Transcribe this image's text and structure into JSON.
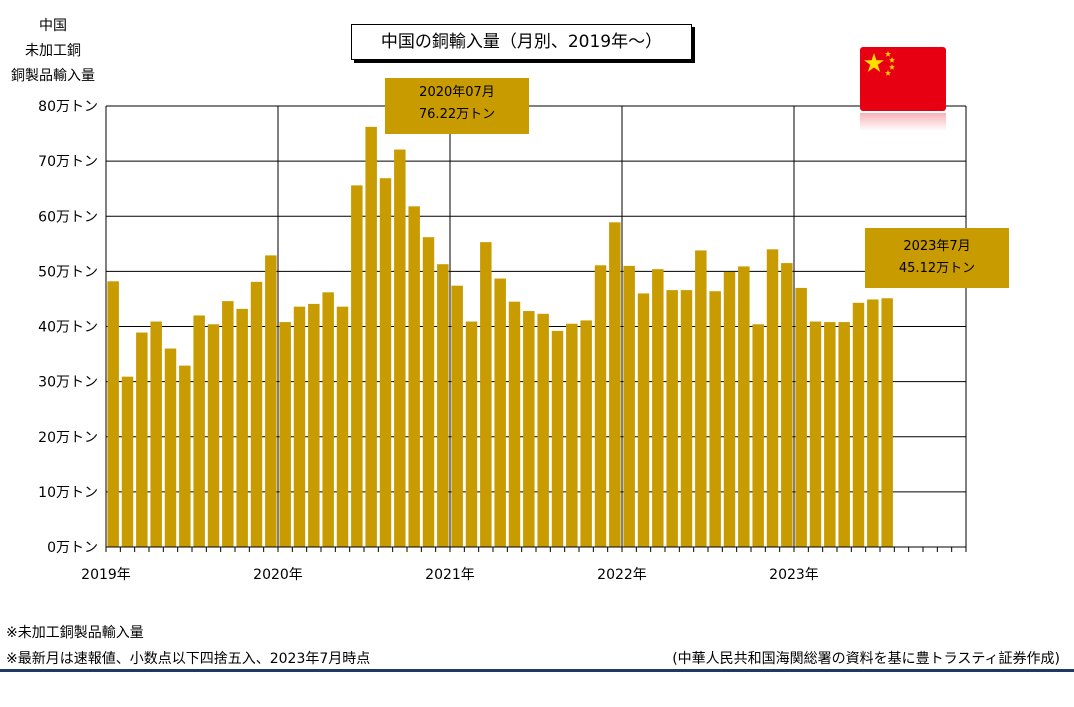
{
  "title": "中国の銅輸入量（月別、2019年～）",
  "y_axis_title": [
    "中国",
    "未加工銅",
    "銅製品輸入量"
  ],
  "chart_data": {
    "type": "bar",
    "title": "中国の銅輸入量（月別、2019年～）",
    "ylabel": "中国 未加工銅 銅製品輸入量",
    "unit": "万トン",
    "ylim": [
      0,
      80
    ],
    "yticks": [
      "0万トン",
      "10万トン",
      "20万トン",
      "30万トン",
      "40万トン",
      "50万トン",
      "60万トン",
      "70万トン",
      "80万トン"
    ],
    "xtick_labels": [
      "2019年",
      "2020年",
      "2021年",
      "2022年",
      "2023年"
    ],
    "grid": true,
    "bar_color": "#c89b00",
    "categories": [
      "2019-01",
      "2019-02",
      "2019-03",
      "2019-04",
      "2019-05",
      "2019-06",
      "2019-07",
      "2019-08",
      "2019-09",
      "2019-10",
      "2019-11",
      "2019-12",
      "2020-01",
      "2020-02",
      "2020-03",
      "2020-04",
      "2020-05",
      "2020-06",
      "2020-07",
      "2020-08",
      "2020-09",
      "2020-10",
      "2020-11",
      "2020-12",
      "2021-01",
      "2021-02",
      "2021-03",
      "2021-04",
      "2021-05",
      "2021-06",
      "2021-07",
      "2021-08",
      "2021-09",
      "2021-10",
      "2021-11",
      "2021-12",
      "2022-01",
      "2022-02",
      "2022-03",
      "2022-04",
      "2022-05",
      "2022-06",
      "2022-07",
      "2022-08",
      "2022-09",
      "2022-10",
      "2022-11",
      "2022-12",
      "2023-01",
      "2023-02",
      "2023-03",
      "2023-04",
      "2023-05",
      "2023-06",
      "2023-07"
    ],
    "values": [
      48.2,
      30.9,
      38.9,
      40.9,
      36.0,
      32.9,
      42.0,
      40.4,
      44.6,
      43.2,
      48.1,
      52.9,
      40.8,
      43.6,
      44.1,
      46.2,
      43.6,
      65.6,
      76.22,
      66.9,
      72.1,
      61.8,
      56.2,
      51.3,
      47.4,
      40.9,
      55.3,
      48.7,
      44.5,
      42.8,
      42.3,
      39.2,
      40.5,
      41.1,
      51.1,
      58.9,
      51.0,
      46.0,
      50.4,
      46.6,
      46.6,
      53.8,
      46.4,
      49.9,
      50.9,
      40.4,
      54.0,
      51.5,
      47.0,
      40.9,
      40.8,
      40.8,
      44.3,
      44.9,
      45.12
    ],
    "annotations": [
      {
        "category": "2020-07",
        "lines": [
          "2020年07月",
          "76.22万トン"
        ]
      },
      {
        "category": "2023-07",
        "lines": [
          "2023年7月",
          "45.12万トン"
        ]
      }
    ]
  },
  "notes": [
    "※未加工銅製品輸入量",
    "※最新月は速報値、小数点以下四捨五入、2023年7月時点"
  ],
  "source": "(中華人民共和国海関総署の資料を基に豊トラスティ証券作成)",
  "flag_icon": "china-flag-icon"
}
